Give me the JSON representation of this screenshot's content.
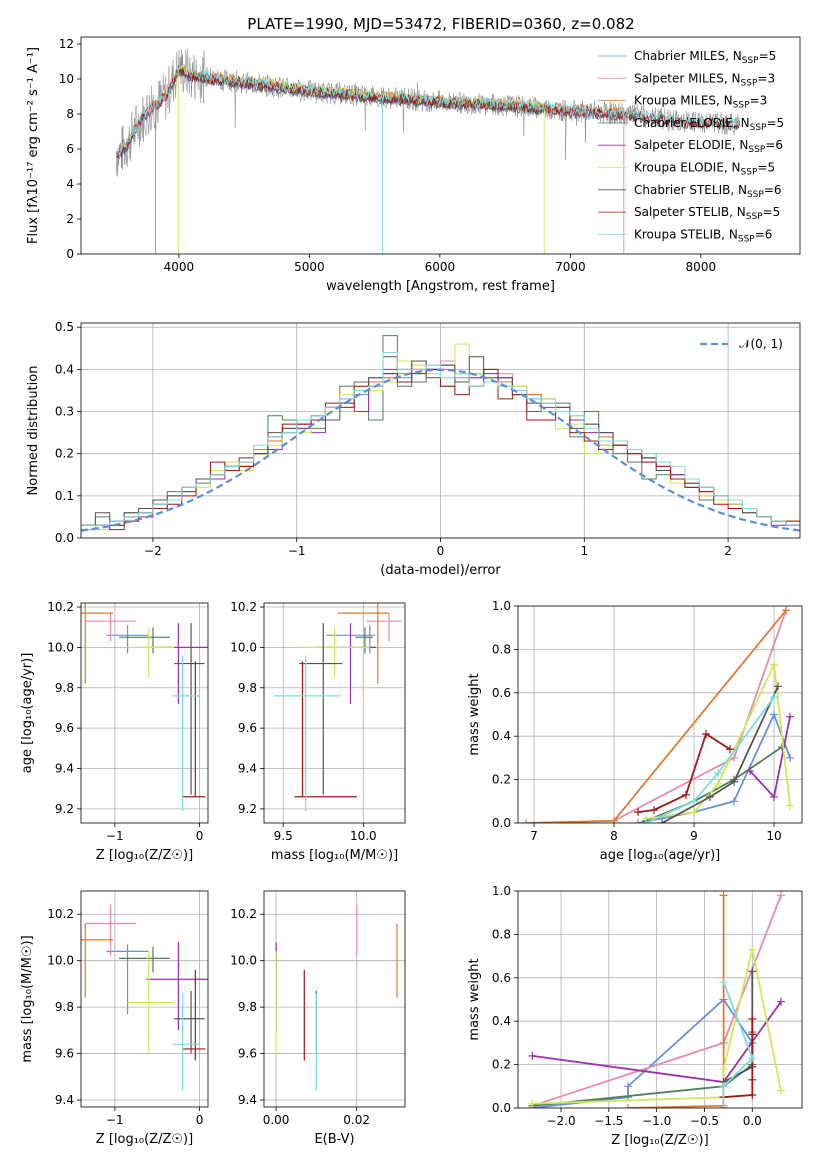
{
  "figure_title": "PLATE=1990, MJD=53472, FIBERID=0360, z=0.082",
  "colors": {
    "Chabrier MILES": "#6a8fd8",
    "Salpeter MILES": "#e88aab",
    "Kroupa MILES": "#e07a30",
    "Chabrier ELODIE": "#4f7f5a",
    "Salpeter ELODIE": "#9b2fae",
    "Kroupa ELODIE": "#cfe85a",
    "Chabrier STELIB": "#555555",
    "Salpeter STELIB": "#a01818",
    "Kroupa STELIB": "#7fdcdc",
    "data": "#808080",
    "normal": "#5b8fd8"
  },
  "chart_data": [
    {
      "id": "spectrum",
      "type": "line",
      "title": "PLATE=1990, MJD=53472, FIBERID=0360, z=0.082",
      "xlabel": "wavelength [Angstrom, rest frame]",
      "ylabel": "Flux [fλ10⁻¹⁷ erg cm⁻² s⁻¹ A⁻¹]",
      "xlim": [
        3250,
        8760
      ],
      "ylim": [
        0,
        12.4
      ],
      "xticks": [
        4000,
        5000,
        6000,
        7000,
        8000
      ],
      "yticks": [
        0,
        2,
        4,
        6,
        8,
        10,
        12
      ],
      "grid": false,
      "legend_position": "upper right",
      "legend": [
        {
          "label": "Chabrier MILES, N",
          "sub": "SSP",
          "tail": "=5",
          "model": "Chabrier MILES"
        },
        {
          "label": "Salpeter MILES, N",
          "sub": "SSP",
          "tail": "=3",
          "model": "Salpeter MILES"
        },
        {
          "label": "Kroupa MILES, N",
          "sub": "SSP",
          "tail": "=3",
          "model": "Kroupa MILES"
        },
        {
          "label": "Chabrier ELODIE, N",
          "sub": "SSP",
          "tail": "=5",
          "model": "Chabrier ELODIE"
        },
        {
          "label": "Salpeter ELODIE, N",
          "sub": "SSP",
          "tail": "=6",
          "model": "Salpeter ELODIE"
        },
        {
          "label": "Kroupa ELODIE, N",
          "sub": "SSP",
          "tail": "=5",
          "model": "Kroupa ELODIE"
        },
        {
          "label": "Chabrier STELIB, N",
          "sub": "SSP",
          "tail": "=6",
          "model": "Chabrier STELIB"
        },
        {
          "label": "Salpeter STELIB, N",
          "sub": "SSP",
          "tail": "=5",
          "model": "Salpeter STELIB"
        },
        {
          "label": "Kroupa STELIB, N",
          "sub": "SSP",
          "tail": "=6",
          "model": "Kroupa STELIB"
        }
      ],
      "continuum": {
        "x": [
          3520,
          3600,
          3700,
          3800,
          3900,
          4000,
          4100,
          4300,
          4600,
          5000,
          5500,
          6000,
          6500,
          7000,
          7400,
          7800,
          8300
        ],
        "y": [
          5.6,
          6.2,
          7.6,
          8.4,
          9.0,
          10.6,
          10.2,
          10.0,
          9.7,
          9.3,
          9.0,
          8.7,
          8.5,
          8.2,
          8.0,
          7.6,
          7.4
        ]
      },
      "model_ranges": {
        "MILES": [
          3520,
          7410
        ],
        "ELODIE": [
          3900,
          6800
        ],
        "STELIB": [
          3520,
          8300
        ]
      }
    },
    {
      "id": "residuals",
      "type": "bar",
      "xlabel": "(data-model)/error",
      "ylabel": "Normed distribution",
      "xlim": [
        -2.5,
        2.5
      ],
      "ylim": [
        0,
        0.51
      ],
      "xticks": [
        -2,
        -1,
        0,
        1,
        2
      ],
      "yticks": [
        0.0,
        0.1,
        0.2,
        0.3,
        0.4,
        0.5
      ],
      "grid": true,
      "legend_position": "upper right",
      "legend": [
        {
          "label": "𝒩(0, 1)",
          "model": "normal"
        }
      ],
      "bin_width": 0.1
    },
    {
      "id": "age_vs_z",
      "type": "scatter",
      "xlabel": "Z [log₁₀(Z/Z☉)]",
      "ylabel": "age  [log₁₀(age/yr)]",
      "xlim": [
        -1.4,
        0.1
      ],
      "ylim": [
        9.13,
        10.22
      ],
      "xticks": [
        -1,
        0
      ],
      "yticks": [
        9.2,
        9.4,
        9.6,
        9.8,
        10.0,
        10.2
      ],
      "grid": true
    },
    {
      "id": "age_vs_mass",
      "type": "scatter",
      "xlabel": "mass [log₁₀(M/M☉)]",
      "ylabel": "",
      "xlim": [
        9.38,
        10.26
      ],
      "ylim": [
        9.13,
        10.22
      ],
      "xticks": [
        9.5,
        10.0
      ],
      "yticks": [
        9.2,
        9.4,
        9.6,
        9.8,
        10.0,
        10.2
      ],
      "grid": true
    },
    {
      "id": "weight_vs_age",
      "type": "line",
      "xlabel": "age  [log₁₀(age/yr)]",
      "ylabel": "mass weight",
      "xlim": [
        6.8,
        10.35
      ],
      "ylim": [
        0,
        1
      ],
      "xticks": [
        7,
        8,
        9,
        10
      ],
      "yticks": [
        0.0,
        0.2,
        0.4,
        0.6,
        0.8,
        1.0
      ],
      "grid": true
    },
    {
      "id": "mass_vs_z",
      "type": "scatter",
      "xlabel": "Z [log₁₀(Z/Z☉)]",
      "ylabel": "mass [log₁₀(M/M☉)]",
      "xlim": [
        -1.4,
        0.1
      ],
      "ylim": [
        9.37,
        10.3
      ],
      "xticks": [
        -1,
        0
      ],
      "yticks": [
        9.4,
        9.6,
        9.8,
        10.0,
        10.2
      ],
      "grid": true
    },
    {
      "id": "mass_vs_ebv",
      "type": "scatter",
      "xlabel": "E(B-V)",
      "ylabel": "",
      "xlim": [
        -0.003,
        0.032
      ],
      "ylim": [
        9.37,
        10.3
      ],
      "xticks": [
        0.0,
        0.02
      ],
      "yticks": [
        9.4,
        9.6,
        9.8,
        10.0,
        10.2
      ],
      "grid": true
    },
    {
      "id": "weight_vs_z",
      "type": "line",
      "xlabel": "Z [log₁₀(Z/Z☉)]",
      "ylabel": "mass weight",
      "xlim": [
        -2.45,
        0.52
      ],
      "ylim": [
        0,
        1
      ],
      "xticks": [
        -2.0,
        -1.5,
        -1.0,
        -0.5,
        0.0
      ],
      "yticks": [
        0.0,
        0.2,
        0.4,
        0.6,
        0.8,
        1.0
      ],
      "grid": true
    }
  ],
  "models": [
    {
      "name": "Chabrier MILES",
      "age": 10.06,
      "age_err": [
        0.09,
        0.05
      ],
      "z": -0.85,
      "z_err": [
        0.25,
        0.25
      ],
      "mass": 10.04,
      "mass_err": [
        0.27,
        0.03
      ],
      "ebv": 0.0,
      "ssp_age": [
        8.3,
        9.0,
        9.5,
        10.0,
        10.2
      ],
      "ssp_z": [
        -2.3,
        -1.3,
        -1.3,
        -0.3,
        0.0
      ],
      "ssp_w": [
        0.0,
        0.05,
        0.1,
        0.5,
        0.3
      ],
      "hist": [
        0.02,
        0.03,
        0.03,
        0.05,
        0.06,
        0.08,
        0.1,
        0.12,
        0.14,
        0.15,
        0.16,
        0.18,
        0.2,
        0.23,
        0.26,
        0.27,
        0.28,
        0.3,
        0.33,
        0.34,
        0.37,
        0.39,
        0.38,
        0.4,
        0.4,
        0.41,
        0.38,
        0.38,
        0.39,
        0.38,
        0.36,
        0.34,
        0.33,
        0.31,
        0.28,
        0.27,
        0.25,
        0.22,
        0.21,
        0.19,
        0.17,
        0.15,
        0.13,
        0.11,
        0.1,
        0.08,
        0.06,
        0.05,
        0.04,
        0.03
      ]
    },
    {
      "name": "Salpeter MILES",
      "age": 10.13,
      "age_err": [
        0.1,
        0.04
      ],
      "z": -1.05,
      "z_err": [
        0.3,
        0.3
      ],
      "mass": 10.16,
      "mass_err": [
        0.14,
        0.08
      ],
      "ebv": 0.02,
      "ssp_age": [
        8.0,
        9.5,
        10.15
      ],
      "ssp_z": [
        -2.3,
        -0.3,
        0.3
      ],
      "ssp_w": [
        0.01,
        0.3,
        0.98
      ],
      "hist": [
        0.02,
        0.02,
        0.04,
        0.05,
        0.07,
        0.08,
        0.1,
        0.12,
        0.13,
        0.15,
        0.17,
        0.19,
        0.21,
        0.24,
        0.26,
        0.27,
        0.29,
        0.31,
        0.33,
        0.35,
        0.37,
        0.38,
        0.4,
        0.41,
        0.39,
        0.42,
        0.38,
        0.39,
        0.37,
        0.39,
        0.35,
        0.34,
        0.32,
        0.3,
        0.29,
        0.27,
        0.24,
        0.23,
        0.2,
        0.18,
        0.17,
        0.14,
        0.13,
        0.11,
        0.09,
        0.08,
        0.06,
        0.05,
        0.04,
        0.03
      ]
    },
    {
      "name": "Kroupa MILES",
      "age": 10.17,
      "age_err": [
        0.35,
        0.05
      ],
      "z": -1.35,
      "z_err": [
        0.18,
        0.33
      ],
      "mass": 10.09,
      "mass_err": [
        0.25,
        0.07
      ],
      "ebv": 0.03,
      "ssp_age": [
        6.9,
        8.0,
        10.15
      ],
      "ssp_z": [
        -1.3,
        -0.3,
        -0.3
      ],
      "ssp_w": [
        0.0,
        0.01,
        0.98
      ],
      "hist": [
        0.03,
        0.03,
        0.03,
        0.04,
        0.06,
        0.07,
        0.09,
        0.11,
        0.13,
        0.15,
        0.17,
        0.18,
        0.21,
        0.23,
        0.25,
        0.27,
        0.29,
        0.31,
        0.33,
        0.35,
        0.37,
        0.38,
        0.39,
        0.4,
        0.41,
        0.4,
        0.39,
        0.39,
        0.38,
        0.37,
        0.35,
        0.34,
        0.32,
        0.3,
        0.28,
        0.27,
        0.24,
        0.22,
        0.2,
        0.19,
        0.16,
        0.15,
        0.13,
        0.12,
        0.1,
        0.08,
        0.06,
        0.05,
        0.04,
        0.04
      ]
    },
    {
      "name": "Chabrier ELODIE",
      "age": 10.05,
      "age_err": [
        0.08,
        0.05
      ],
      "z": -0.55,
      "z_err": [
        0.4,
        0.2
      ],
      "mass": 10.01,
      "mass_err": [
        0.06,
        0.05
      ],
      "ebv": 0.0,
      "ssp_age": [
        8.4,
        9.0,
        9.5,
        10.1
      ],
      "ssp_z": [
        -2.3,
        -0.3,
        0.0,
        0.0
      ],
      "ssp_w": [
        0.01,
        0.1,
        0.2,
        0.35
      ],
      "hist": [
        0.03,
        0.05,
        0.04,
        0.06,
        0.06,
        0.09,
        0.11,
        0.11,
        0.14,
        0.16,
        0.17,
        0.17,
        0.2,
        0.29,
        0.28,
        0.26,
        0.26,
        0.31,
        0.36,
        0.37,
        0.28,
        0.48,
        0.36,
        0.37,
        0.4,
        0.36,
        0.37,
        0.39,
        0.4,
        0.36,
        0.34,
        0.3,
        0.33,
        0.32,
        0.24,
        0.3,
        0.22,
        0.2,
        0.18,
        0.14,
        0.15,
        0.15,
        0.13,
        0.09,
        0.09,
        0.07,
        0.06,
        0.05,
        0.04,
        0.03
      ]
    },
    {
      "name": "Salpeter ELODIE",
      "age": 10.0,
      "age_err": [
        0.28,
        0.12
      ],
      "z": -0.25,
      "z_err": [
        0.38,
        0.36
      ],
      "mass": 9.92,
      "mass_err": [
        0.22,
        0.16
      ],
      "ebv": 0.0,
      "ssp_age": [
        9.7,
        10.0,
        10.2
      ],
      "ssp_z": [
        -2.3,
        -0.3,
        0.3
      ],
      "ssp_w": [
        0.24,
        0.12,
        0.49
      ],
      "hist": [
        0.03,
        0.03,
        0.04,
        0.05,
        0.05,
        0.08,
        0.1,
        0.12,
        0.13,
        0.14,
        0.16,
        0.17,
        0.2,
        0.21,
        0.25,
        0.26,
        0.25,
        0.31,
        0.32,
        0.3,
        0.38,
        0.4,
        0.37,
        0.42,
        0.4,
        0.41,
        0.37,
        0.38,
        0.39,
        0.38,
        0.35,
        0.33,
        0.31,
        0.31,
        0.28,
        0.25,
        0.25,
        0.22,
        0.2,
        0.19,
        0.16,
        0.15,
        0.12,
        0.1,
        0.09,
        0.08,
        0.06,
        0.05,
        0.03,
        0.03
      ]
    },
    {
      "name": "Kroupa ELODIE",
      "age": 10.0,
      "age_err": [
        0.15,
        0.1
      ],
      "z": -0.6,
      "z_err": [
        0.25,
        0.3
      ],
      "mass": 9.82,
      "mass_err": [
        0.22,
        0.22
      ],
      "ebv": 0.0,
      "ssp_age": [
        8.4,
        9.0,
        9.3,
        10.0,
        10.2
      ],
      "ssp_z": [
        -2.3,
        -0.3,
        -0.3,
        0.0,
        0.3
      ],
      "ssp_w": [
        0.02,
        0.05,
        0.18,
        0.73,
        0.08
      ],
      "hist": [
        0.03,
        0.02,
        0.03,
        0.04,
        0.06,
        0.07,
        0.1,
        0.11,
        0.12,
        0.16,
        0.18,
        0.16,
        0.2,
        0.22,
        0.26,
        0.25,
        0.28,
        0.3,
        0.34,
        0.36,
        0.35,
        0.37,
        0.42,
        0.41,
        0.39,
        0.38,
        0.46,
        0.39,
        0.38,
        0.36,
        0.36,
        0.32,
        0.33,
        0.26,
        0.27,
        0.2,
        0.22,
        0.22,
        0.21,
        0.2,
        0.16,
        0.13,
        0.13,
        0.1,
        0.09,
        0.08,
        0.06,
        0.05,
        0.04,
        0.04
      ]
    },
    {
      "name": "Chabrier STELIB",
      "age": 9.92,
      "age_err": [
        0.65,
        0.2
      ],
      "z": -0.1,
      "z_err": [
        0.2,
        0.16
      ],
      "mass": 9.75,
      "mass_err": [
        0.15,
        0.12
      ],
      "ebv": 0.01,
      "ssp_age": [
        8.6,
        9.2,
        9.5,
        10.05
      ],
      "ssp_z": [
        -0.3,
        -0.3,
        0.0,
        0.0
      ],
      "ssp_w": [
        0.0,
        0.12,
        0.19,
        0.63
      ],
      "hist": [
        0.03,
        0.06,
        0.03,
        0.06,
        0.07,
        0.09,
        0.1,
        0.11,
        0.14,
        0.15,
        0.17,
        0.19,
        0.2,
        0.25,
        0.26,
        0.27,
        0.29,
        0.28,
        0.32,
        0.35,
        0.38,
        0.43,
        0.4,
        0.42,
        0.38,
        0.41,
        0.37,
        0.43,
        0.38,
        0.38,
        0.34,
        0.32,
        0.32,
        0.31,
        0.26,
        0.27,
        0.25,
        0.22,
        0.21,
        0.19,
        0.16,
        0.14,
        0.13,
        0.12,
        0.1,
        0.09,
        0.06,
        0.05,
        0.04,
        0.03
      ]
    },
    {
      "name": "Salpeter STELIB",
      "age": 9.26,
      "age_err": [
        0.0,
        0.67
      ],
      "z": -0.05,
      "z_err": [
        0.15,
        0.12
      ],
      "mass": 9.62,
      "mass_err": [
        0.05,
        0.34
      ],
      "ebv": 0.007,
      "ssp_age": [
        8.3,
        8.5,
        8.9,
        9.15,
        9.45
      ],
      "ssp_z": [
        -0.3,
        0.0,
        0.0,
        0.0,
        0.0
      ],
      "ssp_w": [
        0.05,
        0.06,
        0.13,
        0.41,
        0.34
      ],
      "hist": [
        0.03,
        0.03,
        0.02,
        0.04,
        0.06,
        0.07,
        0.08,
        0.1,
        0.13,
        0.18,
        0.16,
        0.17,
        0.2,
        0.24,
        0.27,
        0.27,
        0.28,
        0.32,
        0.31,
        0.36,
        0.36,
        0.39,
        0.37,
        0.39,
        0.4,
        0.36,
        0.34,
        0.36,
        0.4,
        0.33,
        0.34,
        0.28,
        0.28,
        0.3,
        0.25,
        0.23,
        0.21,
        0.22,
        0.2,
        0.18,
        0.17,
        0.14,
        0.12,
        0.11,
        0.08,
        0.07,
        0.07,
        0.05,
        0.04,
        0.04
      ]
    },
    {
      "name": "Kroupa STELIB",
      "age": 9.76,
      "age_err": [
        0.57,
        0.2
      ],
      "z": -0.2,
      "z_err": [
        0.12,
        0.2
      ],
      "mass": 9.64,
      "mass_err": [
        0.2,
        0.22
      ],
      "ebv": 0.01,
      "ssp_age": [
        8.4,
        9.0,
        9.3,
        10.0
      ],
      "ssp_z": [
        -0.3,
        -0.3,
        0.0,
        -0.3
      ],
      "ssp_w": [
        0.0,
        0.1,
        0.23,
        0.58
      ],
      "hist": [
        0.03,
        0.03,
        0.04,
        0.05,
        0.06,
        0.08,
        0.09,
        0.12,
        0.13,
        0.15,
        0.17,
        0.18,
        0.22,
        0.24,
        0.25,
        0.28,
        0.29,
        0.31,
        0.33,
        0.35,
        0.36,
        0.44,
        0.4,
        0.4,
        0.41,
        0.38,
        0.39,
        0.36,
        0.37,
        0.36,
        0.35,
        0.33,
        0.32,
        0.3,
        0.29,
        0.26,
        0.23,
        0.23,
        0.21,
        0.2,
        0.18,
        0.17,
        0.14,
        0.12,
        0.1,
        0.09,
        0.07,
        0.05,
        0.04,
        0.03
      ]
    }
  ]
}
